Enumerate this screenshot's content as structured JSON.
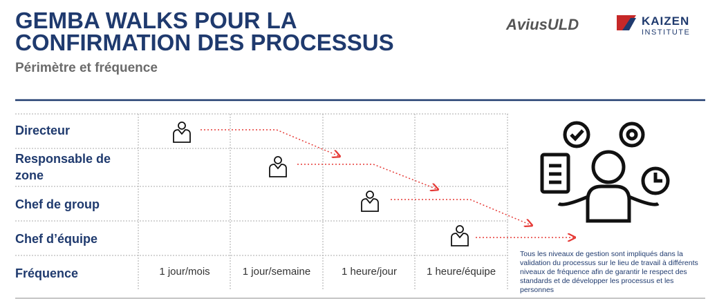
{
  "header": {
    "title_lines": [
      "GEMBA WALKS POUR LA",
      "CONFIRMATION DES PROCESSUS"
    ],
    "subtitle": "Périmètre et fréquence",
    "logos": [
      "AviusULD",
      "KAIZEN",
      "INSTITUTE"
    ]
  },
  "table": {
    "rows": [
      "Directeur",
      "Responsable de zone",
      "Chef de group",
      "Chef d’équipe"
    ],
    "frequency_label": "Fréquence",
    "frequencies": [
      "1 jour/mois",
      "1 jour/semaine",
      "1 heure/jour",
      "1 heure/équipe"
    ]
  },
  "description": "Tous les niveaux de gestion sont impliqués dans la validation du processus sur le lieu de travail à différents niveaux de fréquence afin de garantir le respect des standards et de développer les processus et les personnes"
}
